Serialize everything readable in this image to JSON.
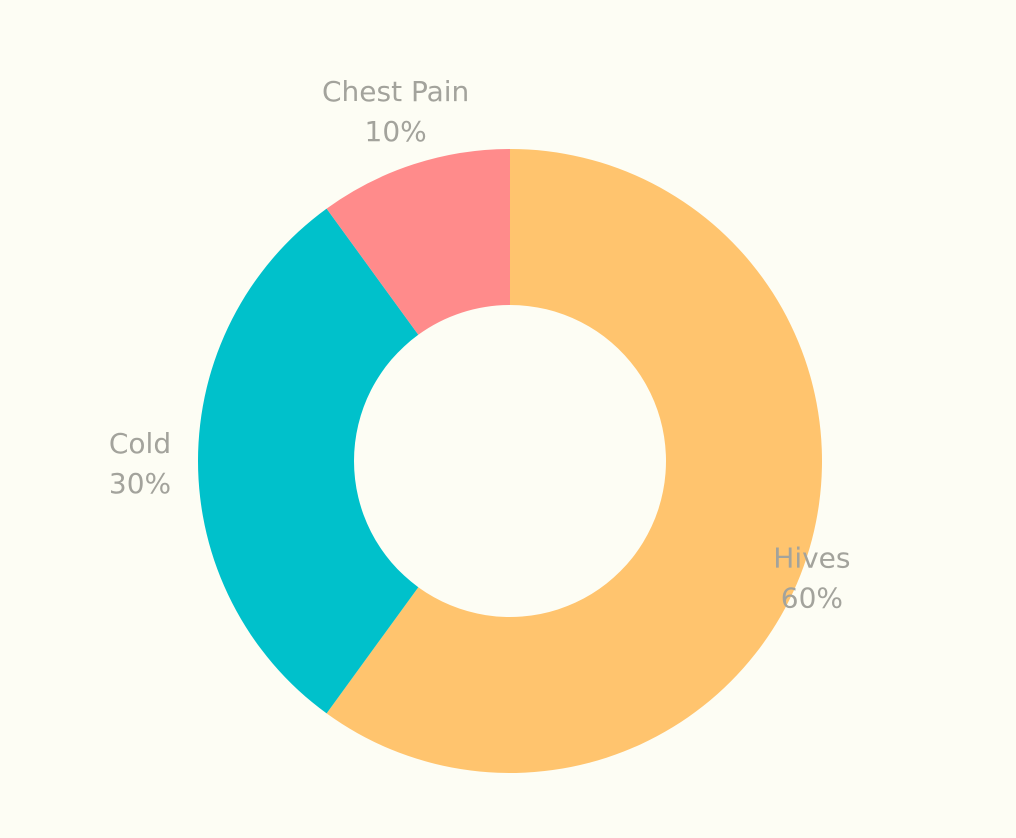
{
  "chart_data": {
    "type": "pie",
    "donut": true,
    "legend": "none",
    "slices": [
      {
        "label": "Hives",
        "value": 60,
        "value_label": "60%",
        "color": "#ffc46e"
      },
      {
        "label": "Cold",
        "value": 30,
        "value_label": "30%",
        "color": "#00c1cb"
      },
      {
        "label": "Chest Pain",
        "value": 10,
        "value_label": "10%",
        "color": "#ff8b8b"
      }
    ]
  },
  "background": "#fdfdf4"
}
